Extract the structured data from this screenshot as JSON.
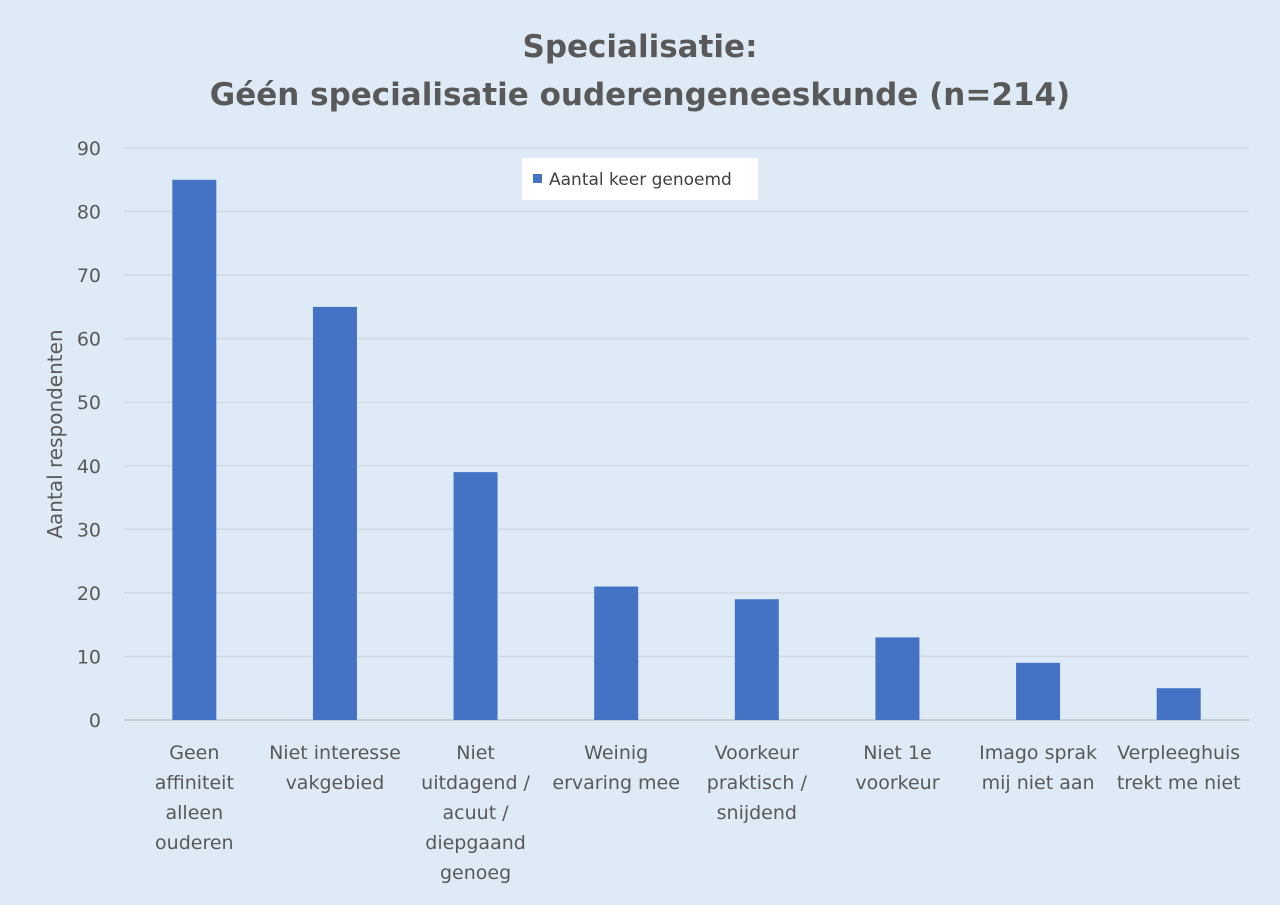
{
  "chart_data": {
    "type": "bar",
    "title": [
      "Specialisatie:",
      "Géén specialisatie ouderengeneeskunde  (n=214)"
    ],
    "xlabel": "",
    "ylabel": "Aantal respondenten",
    "ylim": [
      0,
      90
    ],
    "yticks": [
      0,
      10,
      20,
      30,
      40,
      50,
      60,
      70,
      80,
      90
    ],
    "grid": true,
    "legend_position": "top-center",
    "categories": [
      [
        "Geen",
        "affiniteit",
        "alleen",
        "ouderen"
      ],
      [
        "Niet interesse",
        "vakgebied"
      ],
      [
        "Niet",
        "uitdagend /",
        "acuut /",
        "diepgaand",
        "genoeg"
      ],
      [
        "Weinig",
        "ervaring mee"
      ],
      [
        "Voorkeur",
        "praktisch /",
        "snijdend"
      ],
      [
        "Niet 1e",
        "voorkeur"
      ],
      [
        "Imago sprak",
        "mij niet aan"
      ],
      [
        "Verpleeghuis",
        "trekt me niet"
      ]
    ],
    "series": [
      {
        "name": "Aantal keer genoemd",
        "color": "#4472c4",
        "values": [
          85,
          65,
          39,
          21,
          19,
          13,
          9,
          5
        ]
      }
    ]
  }
}
